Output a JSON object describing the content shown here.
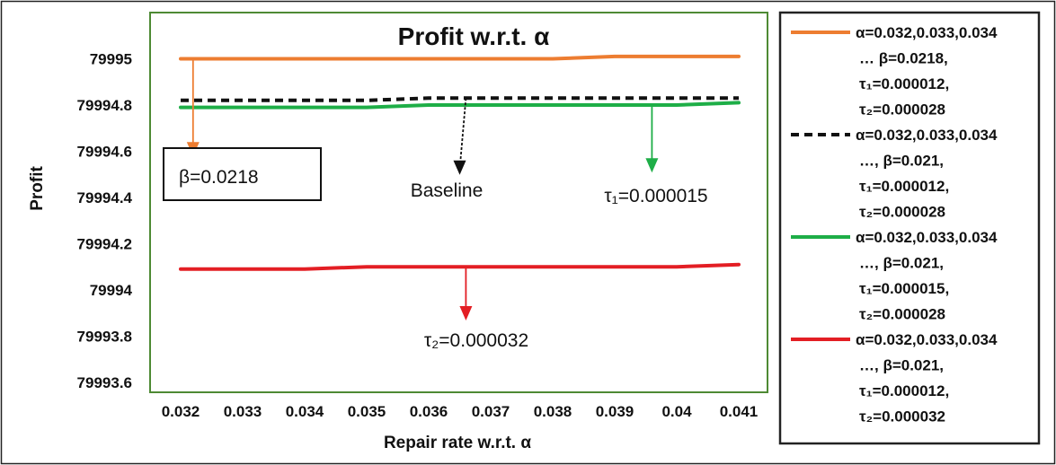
{
  "chart_data": {
    "type": "line",
    "title": "Profit w.r.t. α",
    "xlabel": "Repair rate w.r.t. α",
    "ylabel": "Profit",
    "x": [
      0.032,
      0.033,
      0.034,
      0.035,
      0.036,
      0.037,
      0.038,
      0.039,
      0.04,
      0.041
    ],
    "x_tick_labels": [
      "0.032",
      "0.033",
      "0.034",
      "0.035",
      "0.036",
      "0.037",
      "0.038",
      "0.039",
      "0.04",
      "0.041"
    ],
    "ylim": [
      79993.6,
      79995.2
    ],
    "y_tick_labels": [
      "79993.6",
      "79993.8",
      "79994",
      "79994.2",
      "79994.4",
      "79994.6",
      "79994.8",
      "79995"
    ],
    "y_tick_values": [
      79993.6,
      79993.8,
      79994.0,
      79994.2,
      79994.4,
      79994.6,
      79994.8,
      79995.0
    ],
    "grid": false,
    "legend_position": "right",
    "series": [
      {
        "legend_lines": [
          "α=0.032,0.033,0.034",
          "… β=0.0218,",
          "τ₁=0.000012,",
          "τ₂=0.000028"
        ],
        "color": "#ED7D31",
        "dash": "solid",
        "values": [
          79995.0,
          79995.0,
          79995.0,
          79995.0,
          79995.0,
          79995.0,
          79995.0,
          79995.01,
          79995.01,
          79995.01
        ]
      },
      {
        "legend_lines": [
          "α=0.032,0.033,0.034",
          "…, β=0.021,",
          "τ₁=0.000012,",
          "τ₂=0.000028"
        ],
        "color": "#111111",
        "dash": "dashed",
        "values": [
          79994.82,
          79994.82,
          79994.82,
          79994.82,
          79994.83,
          79994.83,
          79994.83,
          79994.83,
          79994.83,
          79994.83
        ]
      },
      {
        "legend_lines": [
          "α=0.032,0.033,0.034",
          "…, β=0.021,",
          "τ₁=0.000015,",
          "τ₂=0.000028"
        ],
        "color": "#1EAE47",
        "dash": "solid",
        "values": [
          79994.79,
          79994.79,
          79994.79,
          79994.79,
          79994.8,
          79994.8,
          79994.8,
          79994.8,
          79994.8,
          79994.81
        ]
      },
      {
        "legend_lines": [
          "α=0.032,0.033,0.034",
          "…, β=0.021,",
          "τ₁=0.000012,",
          "τ₂=0.000032"
        ],
        "color": "#E31E24",
        "dash": "solid",
        "values": [
          79994.09,
          79994.09,
          79994.09,
          79994.1,
          79994.1,
          79994.1,
          79994.1,
          79994.1,
          79994.1,
          79994.11
        ]
      }
    ],
    "annotations": [
      {
        "text": "β=0.0218",
        "color": "#ED7D31",
        "boxed": true,
        "arrow_from": {
          "x": 0.0322,
          "y": 79995.0
        },
        "arrow_to": {
          "x": 0.0322,
          "y": 79994.64
        }
      },
      {
        "text": "Baseline",
        "color": "#111111",
        "boxed": false,
        "arrow_from": {
          "x": 0.0366,
          "y": 79994.83
        },
        "arrow_to": {
          "x": 0.0365,
          "y": 79994.56
        }
      },
      {
        "text": "τ₁=0.000015",
        "color": "#1EAE47",
        "boxed": false,
        "arrow_from": {
          "x": 0.0396,
          "y": 79994.8
        },
        "arrow_to": {
          "x": 0.0396,
          "y": 79994.57
        }
      },
      {
        "text": "τ₂=0.000032",
        "color": "#E31E24",
        "boxed": false,
        "arrow_from": {
          "x": 0.0366,
          "y": 79994.1
        },
        "arrow_to": {
          "x": 0.0366,
          "y": 79993.93
        }
      }
    ]
  }
}
